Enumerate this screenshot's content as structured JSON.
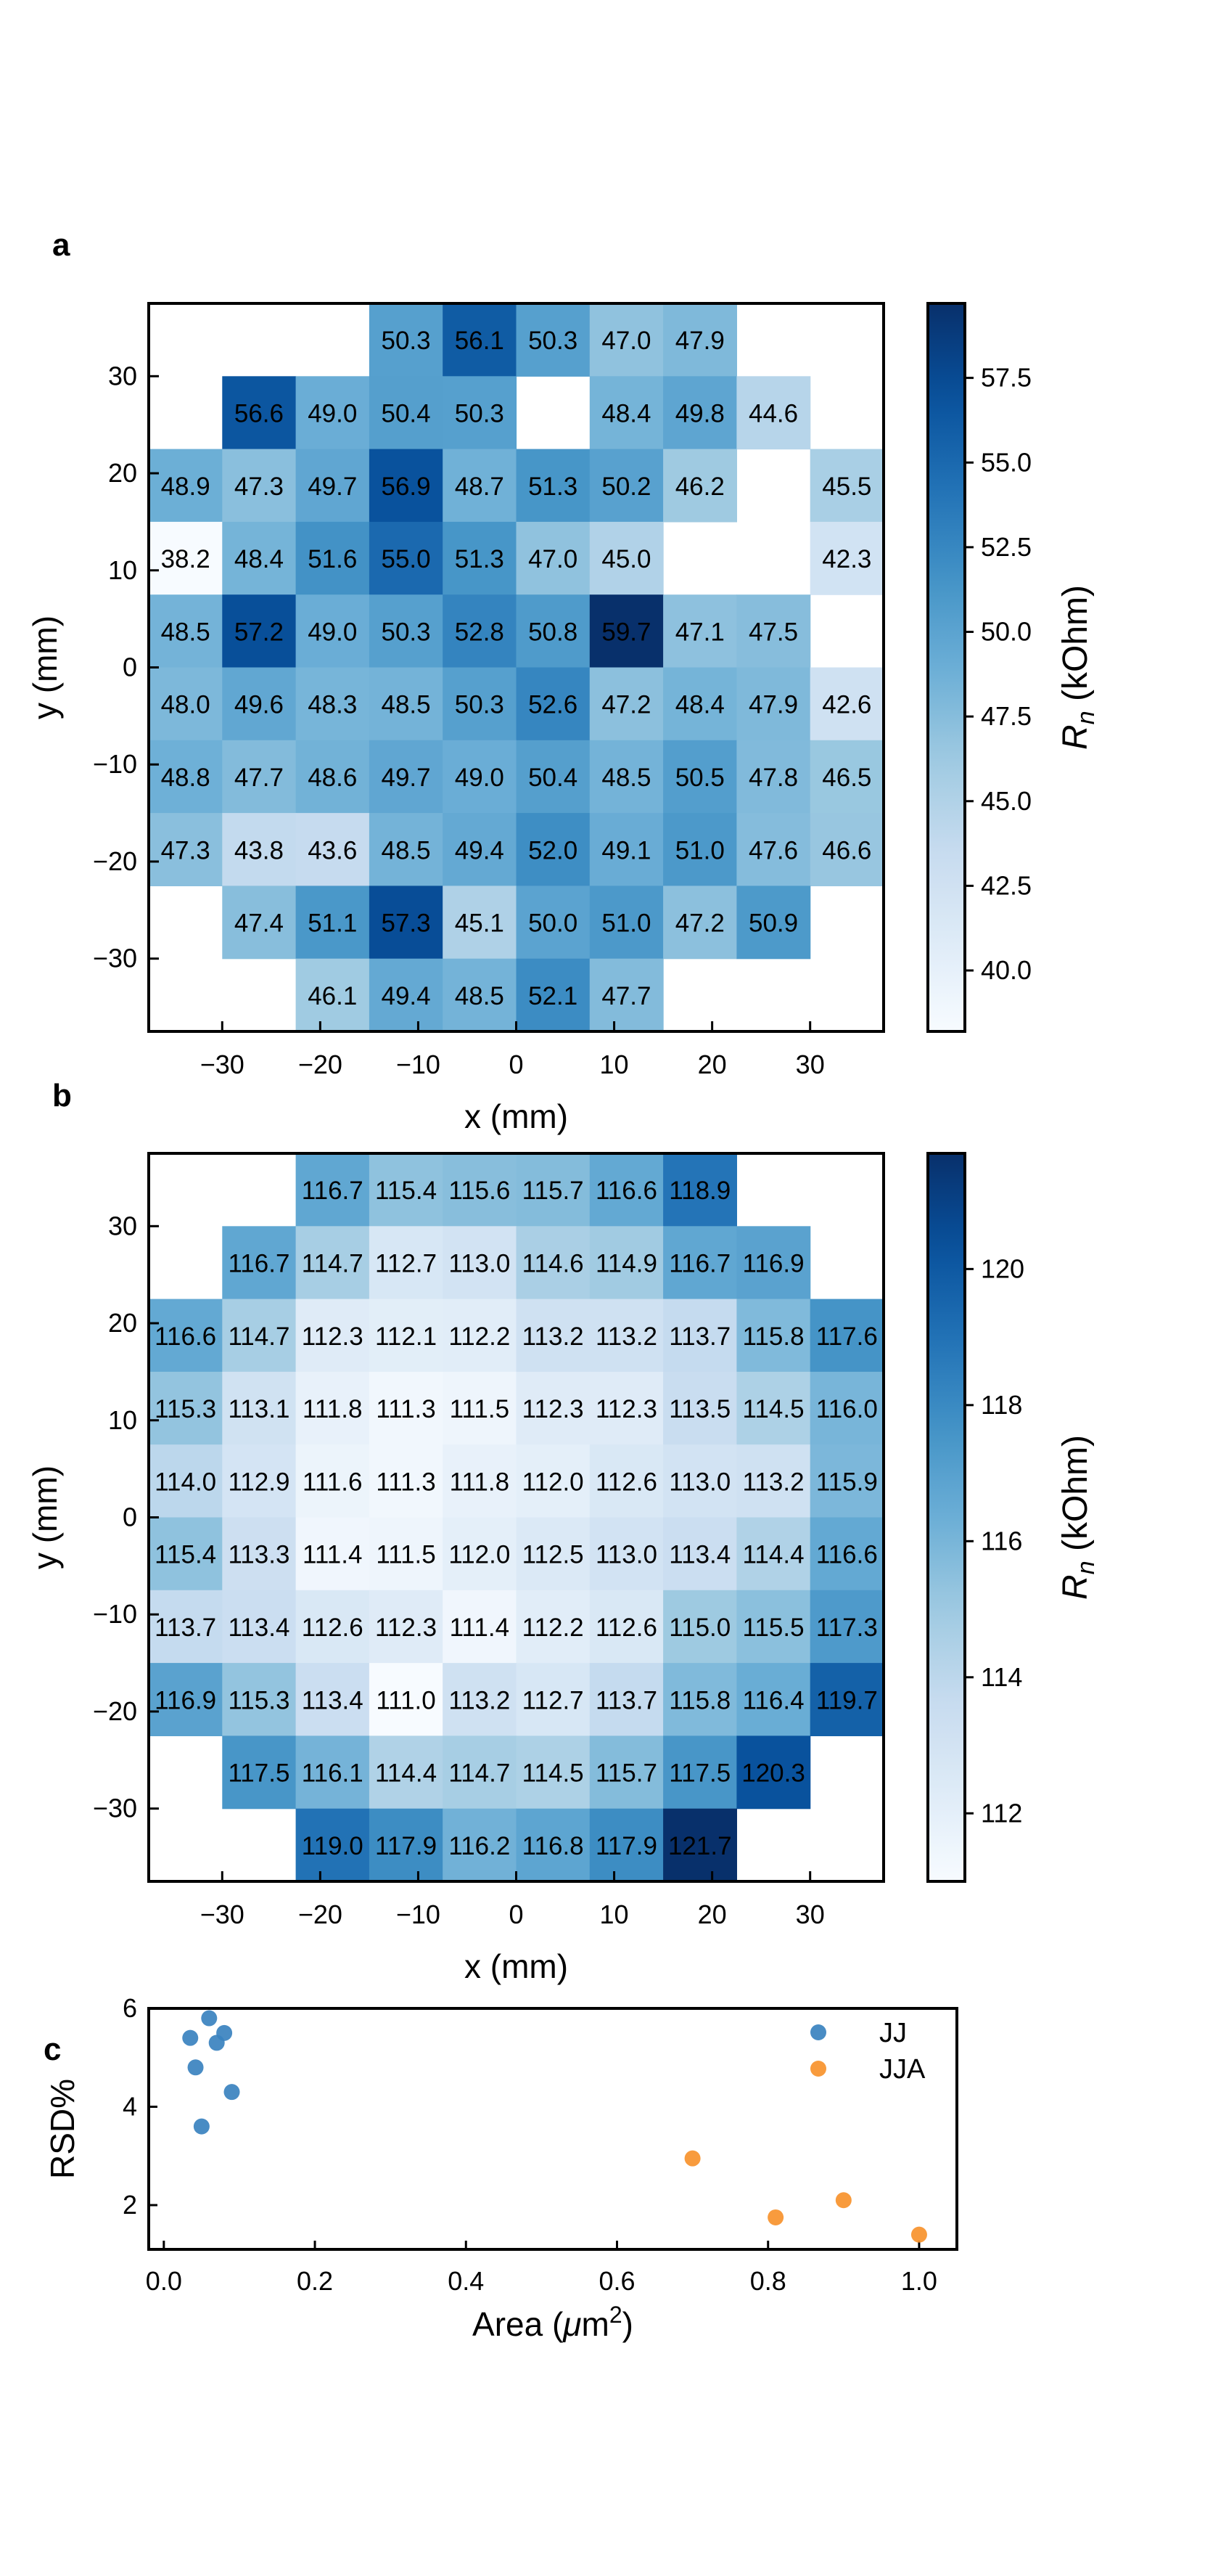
{
  "figure": {
    "panels": [
      "a",
      "b",
      "c"
    ]
  },
  "chart_data": [
    {
      "panel": "a",
      "type": "heatmap",
      "xlabel": "x (mm)",
      "ylabel": "y (mm)",
      "x_ticks": [
        -30,
        -20,
        -10,
        0,
        10,
        20,
        30
      ],
      "y_ticks": [
        30,
        20,
        10,
        0,
        -10,
        -20,
        -30
      ],
      "xlim": [
        -37.5,
        37.5
      ],
      "ylim": [
        -37.5,
        37.5
      ],
      "x_centers": [
        -33.75,
        -26.25,
        -18.75,
        -11.25,
        -3.75,
        3.75,
        11.25,
        18.75,
        26.25,
        33.75
      ],
      "y_centers": [
        33.75,
        26.25,
        18.75,
        11.25,
        3.75,
        -3.75,
        -11.25,
        -18.75,
        -26.25,
        -33.75
      ],
      "cells": [
        [
          null,
          null,
          null,
          50.3,
          56.1,
          50.3,
          47.0,
          47.9,
          null,
          null
        ],
        [
          null,
          56.6,
          49.0,
          50.4,
          50.3,
          null,
          48.4,
          49.8,
          44.6,
          null
        ],
        [
          48.9,
          47.3,
          49.7,
          56.9,
          48.7,
          51.3,
          50.2,
          46.2,
          null,
          45.5
        ],
        [
          38.2,
          48.4,
          51.6,
          55.0,
          51.3,
          47.0,
          45.0,
          null,
          null,
          42.3
        ],
        [
          48.5,
          57.2,
          49.0,
          50.3,
          52.8,
          50.8,
          59.7,
          47.1,
          47.5,
          null
        ],
        [
          48.0,
          49.6,
          48.3,
          48.5,
          50.3,
          52.6,
          47.2,
          48.4,
          47.9,
          42.6
        ],
        [
          48.8,
          47.7,
          48.6,
          49.7,
          49.0,
          50.4,
          48.5,
          50.5,
          47.8,
          46.5
        ],
        [
          47.3,
          43.8,
          43.6,
          48.5,
          49.4,
          52.0,
          49.1,
          51.0,
          47.6,
          46.6
        ],
        [
          null,
          47.4,
          51.1,
          57.3,
          45.1,
          50.0,
          51.0,
          47.2,
          50.9,
          null
        ],
        [
          null,
          null,
          46.1,
          49.4,
          48.5,
          52.1,
          47.7,
          null,
          null,
          null
        ]
      ],
      "colorbar": {
        "label_symbol": "R",
        "label_sub": "n",
        "label_unit": " (kOhm)",
        "vmin": 38.2,
        "vmax": 59.7,
        "ticks": [
          40.0,
          42.5,
          45.0,
          47.5,
          50.0,
          52.5,
          55.0,
          57.5
        ],
        "tick_labels": [
          "40.0",
          "42.5",
          "45.0",
          "47.5",
          "50.0",
          "52.5",
          "55.0",
          "57.5"
        ]
      },
      "colormap": "Blues"
    },
    {
      "panel": "b",
      "type": "heatmap",
      "xlabel": "x (mm)",
      "ylabel": "y (mm)",
      "x_ticks": [
        -30,
        -20,
        -10,
        0,
        10,
        20,
        30
      ],
      "y_ticks": [
        30,
        20,
        10,
        0,
        -10,
        -20,
        -30
      ],
      "xlim": [
        -37.5,
        37.5
      ],
      "ylim": [
        -37.5,
        37.5
      ],
      "x_centers": [
        -33.75,
        -26.25,
        -18.75,
        -11.25,
        -3.75,
        3.75,
        11.25,
        18.75,
        26.25,
        33.75
      ],
      "y_centers": [
        33.75,
        26.25,
        18.75,
        11.25,
        3.75,
        -3.75,
        -11.25,
        -18.75,
        -26.25,
        -33.75
      ],
      "cells": [
        [
          null,
          null,
          116.7,
          115.4,
          115.6,
          115.7,
          116.6,
          118.9,
          null,
          null
        ],
        [
          null,
          116.7,
          114.7,
          112.7,
          113.0,
          114.6,
          114.9,
          116.7,
          116.9,
          null
        ],
        [
          116.6,
          114.7,
          112.3,
          112.1,
          112.2,
          113.2,
          113.2,
          113.7,
          115.8,
          117.6
        ],
        [
          115.3,
          113.1,
          111.8,
          111.3,
          111.5,
          112.3,
          112.3,
          113.5,
          114.5,
          116.0
        ],
        [
          114.0,
          112.9,
          111.6,
          111.3,
          111.8,
          112.0,
          112.6,
          113.0,
          113.2,
          115.9
        ],
        [
          115.4,
          113.3,
          111.4,
          111.5,
          112.0,
          112.5,
          113.0,
          113.4,
          114.4,
          116.6
        ],
        [
          113.7,
          113.4,
          112.6,
          112.3,
          111.4,
          112.2,
          112.6,
          115.0,
          115.5,
          117.3
        ],
        [
          116.9,
          115.3,
          113.4,
          111.0,
          113.2,
          112.7,
          113.7,
          115.8,
          116.4,
          119.7
        ],
        [
          null,
          117.5,
          116.1,
          114.4,
          114.7,
          114.5,
          115.7,
          117.5,
          120.3,
          null
        ],
        [
          null,
          null,
          119.0,
          117.9,
          116.2,
          116.8,
          117.9,
          121.7,
          null,
          null
        ]
      ],
      "colorbar": {
        "label_symbol": "R",
        "label_sub": "n",
        "label_unit": " (kOhm)",
        "vmin": 111.0,
        "vmax": 121.7,
        "ticks": [
          112,
          114,
          116,
          118,
          120
        ],
        "tick_labels": [
          "112",
          "114",
          "116",
          "118",
          "120"
        ]
      },
      "colormap": "Blues"
    },
    {
      "panel": "c",
      "type": "scatter",
      "xlabel_pre": "Area (",
      "xlabel_mu": "μ",
      "xlabel_mid": "m",
      "xlabel_sup": "2",
      "xlabel_post": ")",
      "ylabel": "RSD%",
      "xlim": [
        -0.02,
        1.05
      ],
      "ylim": [
        1.1,
        6.0
      ],
      "x_ticks": [
        0.0,
        0.2,
        0.4,
        0.6,
        0.8,
        1.0
      ],
      "x_tick_labels": [
        "0.0",
        "0.2",
        "0.4",
        "0.6",
        "0.8",
        "1.0"
      ],
      "y_ticks": [
        2,
        4,
        6
      ],
      "y_tick_labels": [
        "2",
        "4",
        "6"
      ],
      "legend_position": "top-right",
      "series": [
        {
          "name": "JJ",
          "color": "#3a82bf",
          "x": [
            0.035,
            0.042,
            0.05,
            0.06,
            0.07,
            0.08,
            0.09
          ],
          "y": [
            5.4,
            4.8,
            3.6,
            5.8,
            5.3,
            5.5,
            4.3
          ]
        },
        {
          "name": "JJA",
          "color": "#f7922c",
          "x": [
            0.7,
            0.81,
            0.9,
            1.0
          ],
          "y": [
            2.95,
            1.75,
            2.1,
            1.4
          ]
        }
      ]
    }
  ]
}
